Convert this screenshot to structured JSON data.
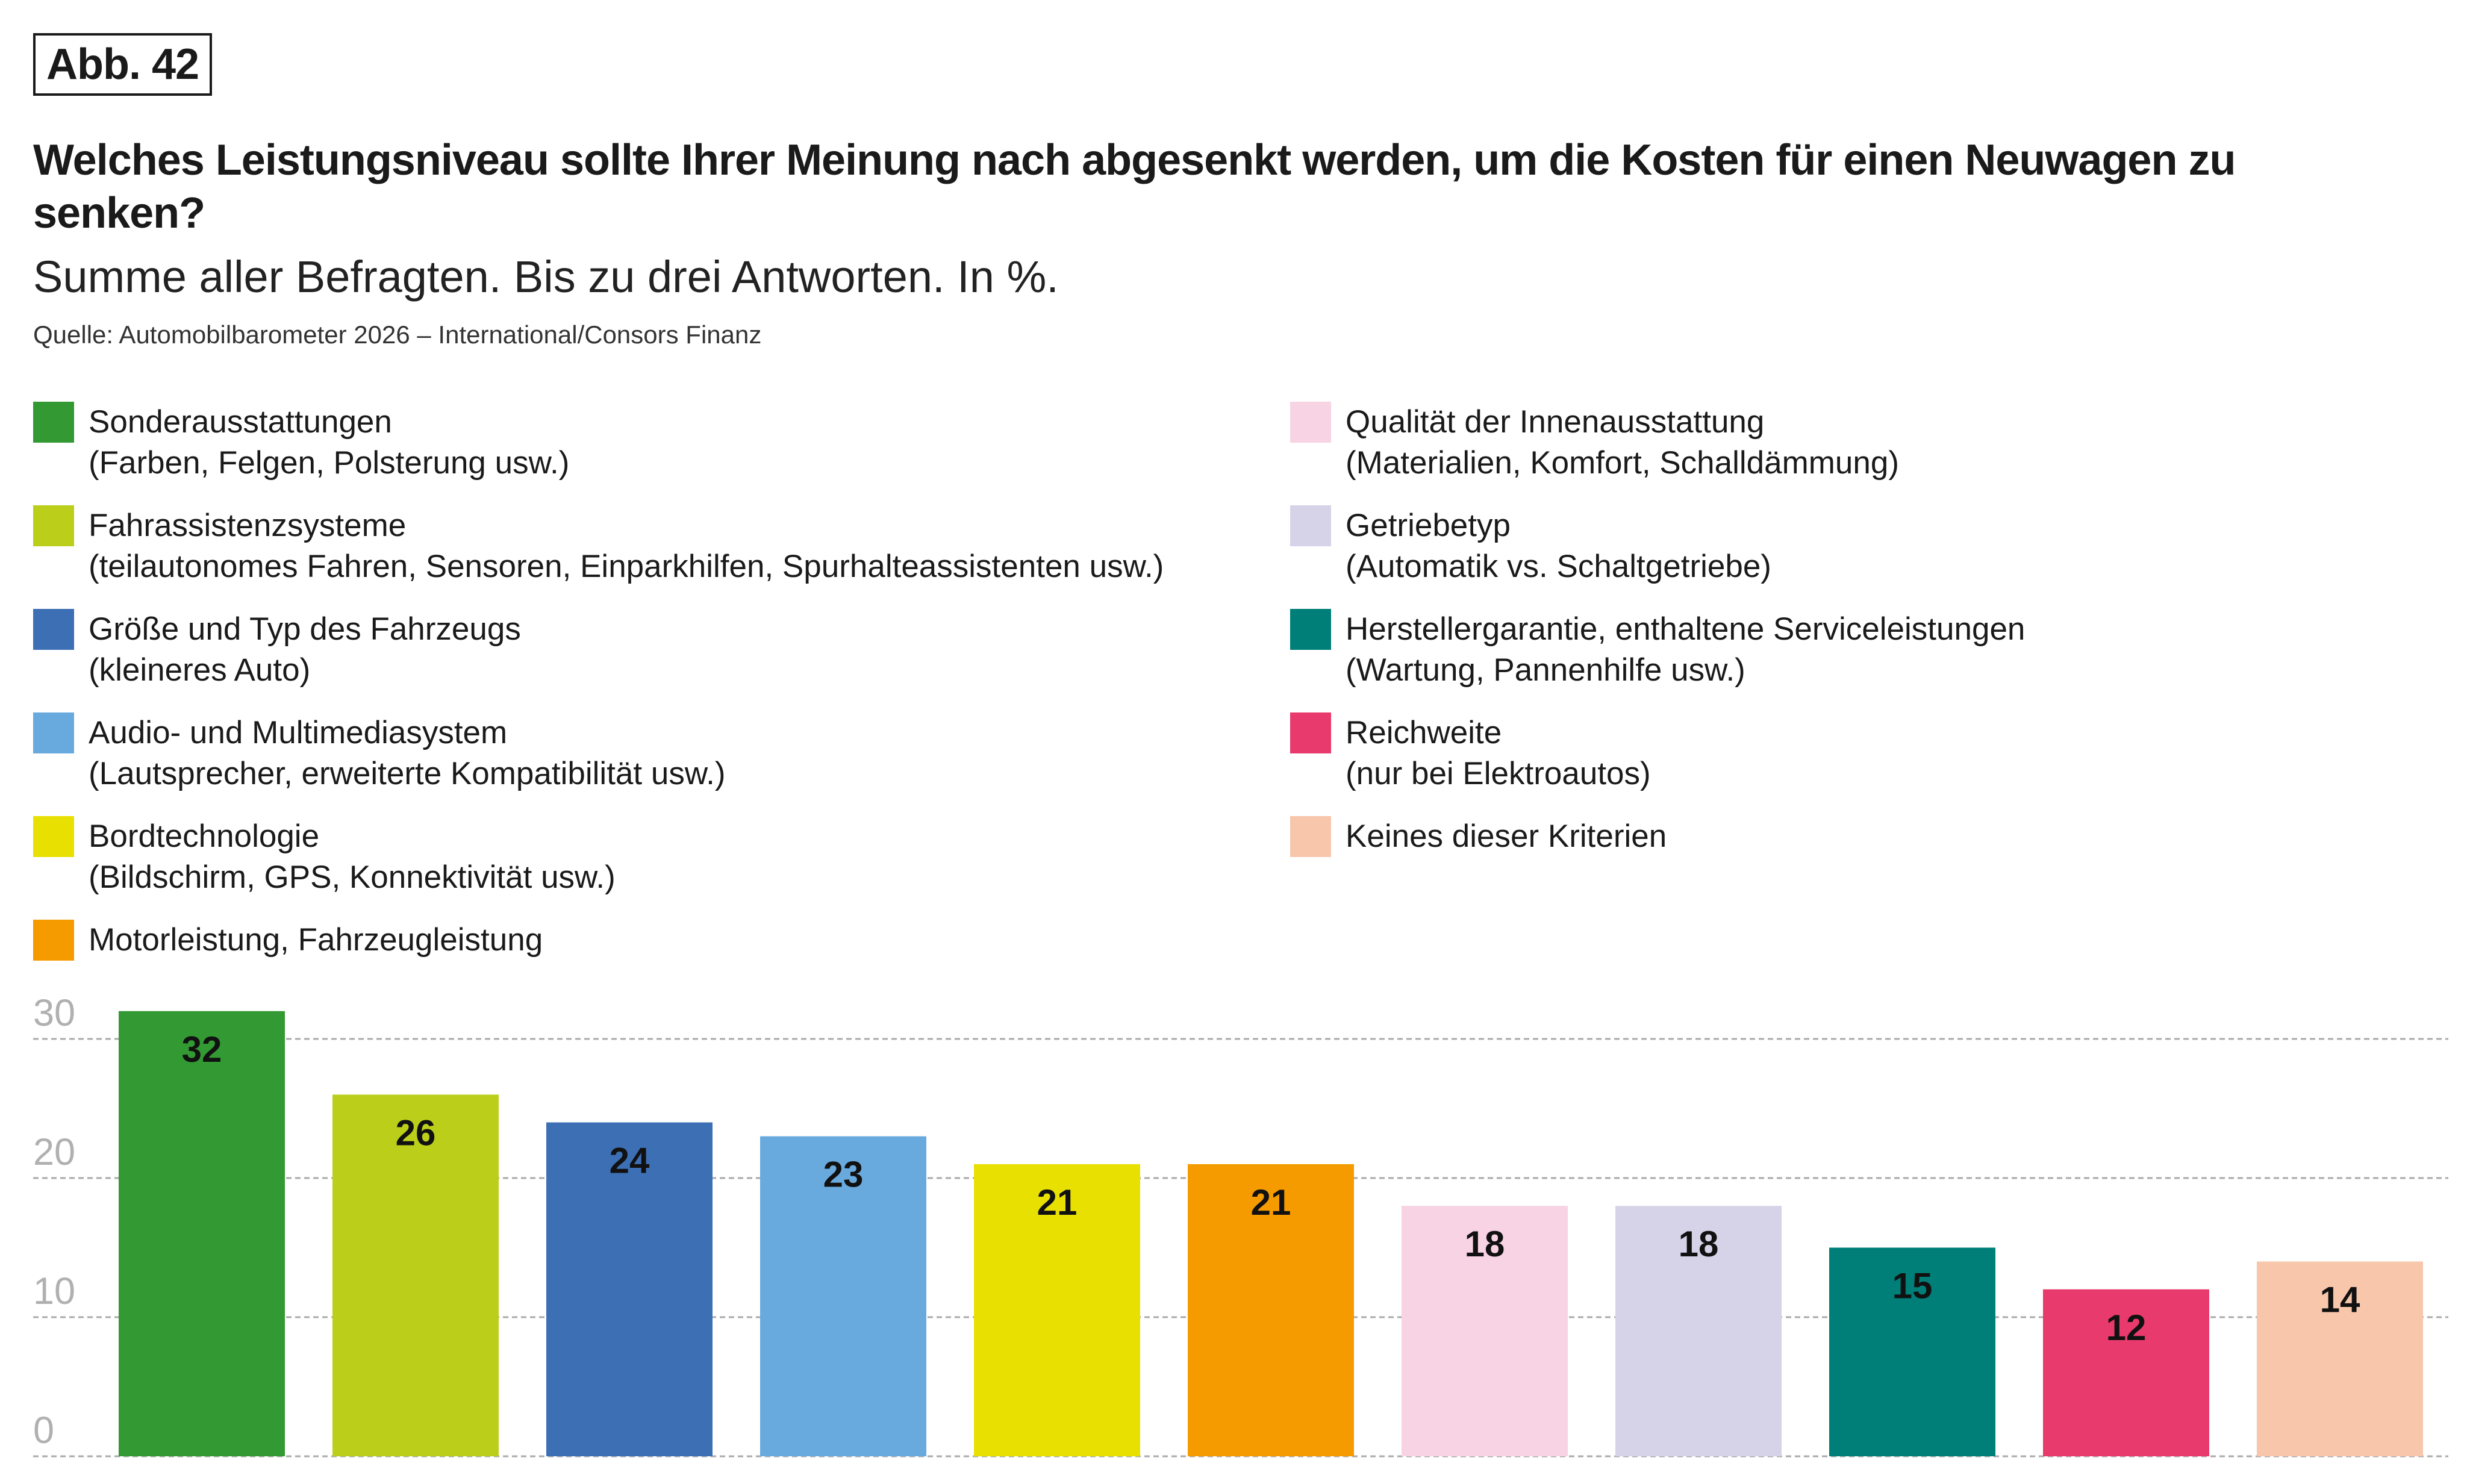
{
  "figure_label": "Abb. 42",
  "title": "Welches Leistungsniveau sollte Ihrer Meinung nach abgesenkt werden, um die Kosten für einen Neuwagen zu senken?",
  "subtitle": "Summe aller Befragten. Bis zu drei Antworten. In %.",
  "source": "Quelle: Automobilbarometer 2026 – International/Consors Finanz",
  "legend": [
    {
      "label": "Sonderausstattungen",
      "sublabel": "(Farben, Felgen, Polsterung usw.)",
      "color": "#339933"
    },
    {
      "label": "Fahrassistenzsysteme",
      "sublabel": "(teilautonomes Fahren, Sensoren, Einparkhilfen, Spurhalteassistenten usw.)",
      "color": "#bbcf1a"
    },
    {
      "label": "Größe und Typ des Fahrzeugs",
      "sublabel": "(kleineres Auto)",
      "color": "#3d6fb5"
    },
    {
      "label": "Audio- und Multimediasystem",
      "sublabel": "(Lautsprecher, erweiterte Kompatibilität usw.)",
      "color": "#69aade"
    },
    {
      "label": "Bordtechnologie",
      "sublabel": "(Bildschirm, GPS, Konnektivität usw.)",
      "color": "#e8e000"
    },
    {
      "label": "Motorleistung, Fahrzeugleistung",
      "sublabel": "",
      "color": "#f59b00"
    },
    {
      "label": "Qualität der Innenausstattung",
      "sublabel": "(Materialien, Komfort, Schalldämmung)",
      "color": "#f7d3e3"
    },
    {
      "label": "Getriebetyp",
      "sublabel": "(Automatik vs. Schaltgetriebe)",
      "color": "#d6d3e8"
    },
    {
      "label": "Herstellergarantie, enthaltene Serviceleistungen",
      "sublabel": "(Wartung, Pannenhilfe usw.)",
      "color": "#007f78"
    },
    {
      "label": "Reichweite",
      "sublabel": "(nur bei Elektroautos)",
      "color": "#e83a6c"
    },
    {
      "label": "Keines dieser Kriterien",
      "sublabel": "",
      "color": "#f7c6ab"
    }
  ],
  "chart_data": {
    "type": "bar",
    "title": "Welches Leistungsniveau sollte Ihrer Meinung nach abgesenkt werden, um die Kosten für einen Neuwagen zu senken?",
    "categories": [
      "Sonderausstattungen",
      "Fahrassistenzsysteme",
      "Größe und Typ des Fahrzeugs",
      "Audio- und Multimediasystem",
      "Bordtechnologie",
      "Motorleistung, Fahrzeugleistung",
      "Qualität der Innenausstattung",
      "Getriebetyp",
      "Herstellergarantie, enthaltene Serviceleistungen",
      "Reichweite",
      "Keines dieser Kriterien"
    ],
    "values": [
      32,
      26,
      24,
      23,
      21,
      21,
      18,
      18,
      15,
      12,
      14
    ],
    "colors": [
      "#339933",
      "#bbcf1a",
      "#3d6fb5",
      "#69aade",
      "#e8e000",
      "#f59b00",
      "#f7d3e3",
      "#d6d3e8",
      "#007f78",
      "#e83a6c",
      "#f7c6ab"
    ],
    "yticks": [
      "0",
      "10",
      "20",
      "30"
    ],
    "ylim": [
      0,
      32
    ],
    "xlabel": "",
    "ylabel": "",
    "grid": true
  }
}
